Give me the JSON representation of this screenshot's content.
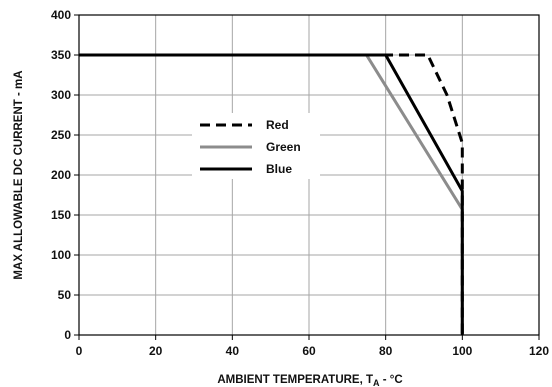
{
  "chart_data": {
    "type": "line",
    "xlabel": "AMBIENT TEMPERATURE, T",
    "xlabel_subscript": "A",
    "xlabel_suffix": " - °C",
    "ylabel": "MAX ALLOWABLE DC CURRENT  -  mA",
    "xlim": [
      0,
      120
    ],
    "ylim": [
      0,
      400
    ],
    "x_ticks": [
      0,
      20,
      40,
      60,
      80,
      100,
      120
    ],
    "y_ticks": [
      0,
      50,
      100,
      150,
      200,
      250,
      300,
      350,
      400
    ],
    "grid": true,
    "legend_position": "center-left",
    "series": [
      {
        "name": "Red",
        "color": "#000000",
        "style": "dashed",
        "points": [
          [
            0,
            350
          ],
          [
            91,
            350
          ],
          [
            96,
            300
          ],
          [
            100,
            240
          ],
          [
            100,
            0
          ]
        ]
      },
      {
        "name": "Green",
        "color": "#8c8c8c",
        "style": "solid",
        "points": [
          [
            0,
            350
          ],
          [
            75,
            350
          ],
          [
            100,
            157
          ],
          [
            100,
            0
          ]
        ]
      },
      {
        "name": "Blue",
        "color": "#000000",
        "style": "solid",
        "points": [
          [
            0,
            350
          ],
          [
            80,
            350
          ],
          [
            100,
            180
          ],
          [
            100,
            0
          ]
        ]
      }
    ]
  }
}
